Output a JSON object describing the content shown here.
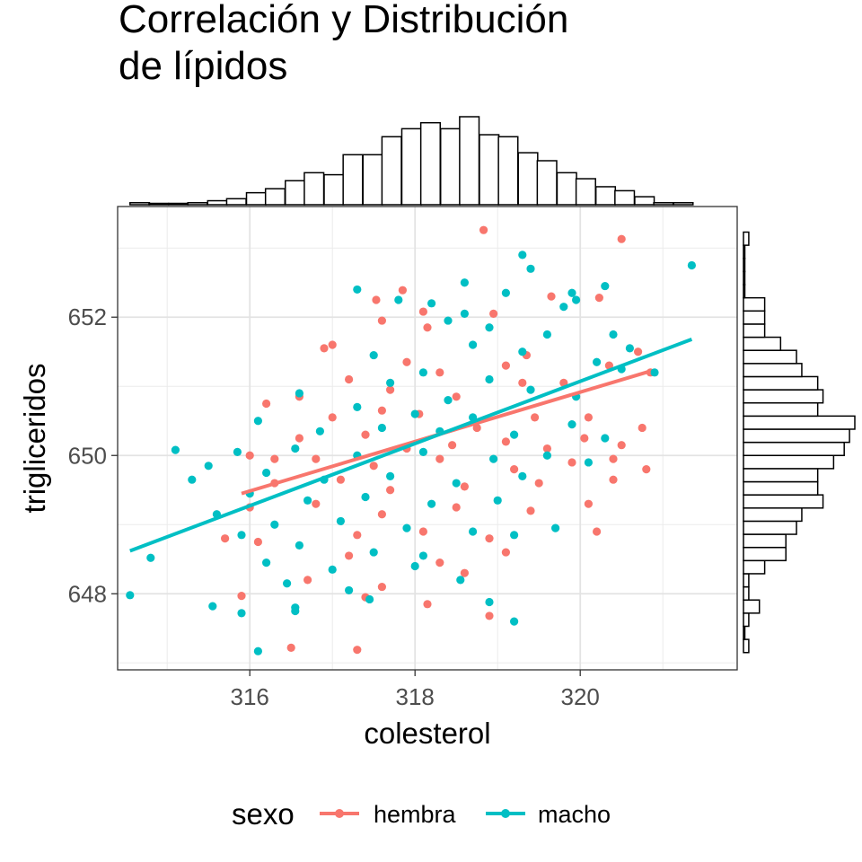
{
  "chart_data": {
    "type": "scatter",
    "title": [
      "Correlación y Distribución",
      "de lípidos"
    ],
    "xlabel": "colesterol",
    "ylabel": "trigliceridos",
    "xlim": [
      314.4,
      321.9
    ],
    "ylim": [
      646.9,
      653.6
    ],
    "xticks": [
      316,
      318,
      320
    ],
    "yticks": [
      648,
      650,
      652
    ],
    "grid": true,
    "legend": {
      "title": "sexo",
      "placement": "bottom",
      "entries": [
        {
          "label": "hembra",
          "color": "#F8766D"
        },
        {
          "label": "macho",
          "color": "#00BFC4"
        }
      ]
    },
    "series": [
      {
        "name": "hembra",
        "color": "#F8766D",
        "points": [
          [
            318.83,
            653.26
          ],
          [
            320.5,
            653.13
          ],
          [
            317.85,
            652.39
          ],
          [
            317.53,
            652.25
          ],
          [
            320.23,
            652.28
          ],
          [
            318.1,
            652.08
          ],
          [
            319.65,
            652.3
          ],
          [
            318.95,
            652.05
          ],
          [
            317.6,
            651.95
          ],
          [
            318.15,
            651.85
          ],
          [
            316.9,
            651.55
          ],
          [
            317.0,
            651.6
          ],
          [
            317.9,
            651.35
          ],
          [
            319.35,
            651.45
          ],
          [
            320.35,
            651.3
          ],
          [
            320.7,
            651.5
          ],
          [
            318.3,
            651.2
          ],
          [
            319.8,
            651.05
          ],
          [
            319.1,
            651.3
          ],
          [
            319.3,
            651.05
          ],
          [
            317.2,
            651.1
          ],
          [
            317.7,
            650.95
          ],
          [
            318.5,
            650.85
          ],
          [
            316.6,
            650.85
          ],
          [
            316.2,
            650.75
          ],
          [
            317.6,
            650.65
          ],
          [
            317.0,
            650.55
          ],
          [
            318.05,
            650.6
          ],
          [
            318.75,
            650.4
          ],
          [
            319.45,
            650.55
          ],
          [
            320.1,
            650.55
          ],
          [
            320.75,
            650.4
          ],
          [
            316.6,
            650.25
          ],
          [
            317.4,
            650.3
          ],
          [
            317.9,
            650.1
          ],
          [
            318.45,
            650.15
          ],
          [
            319.1,
            650.2
          ],
          [
            319.6,
            650.1
          ],
          [
            320.05,
            650.25
          ],
          [
            320.5,
            650.15
          ],
          [
            316.0,
            650.0
          ],
          [
            316.8,
            649.95
          ],
          [
            317.5,
            649.85
          ],
          [
            318.3,
            649.95
          ],
          [
            319.2,
            649.8
          ],
          [
            319.9,
            649.9
          ],
          [
            320.4,
            649.95
          ],
          [
            320.8,
            649.8
          ],
          [
            316.3,
            649.6
          ],
          [
            317.1,
            649.65
          ],
          [
            317.7,
            649.5
          ],
          [
            318.6,
            649.55
          ],
          [
            319.5,
            649.6
          ],
          [
            320.4,
            649.65
          ],
          [
            316.0,
            649.25
          ],
          [
            316.8,
            649.3
          ],
          [
            317.6,
            649.15
          ],
          [
            318.5,
            649.25
          ],
          [
            319.4,
            649.2
          ],
          [
            320.1,
            649.3
          ],
          [
            317.3,
            648.85
          ],
          [
            318.1,
            648.9
          ],
          [
            318.9,
            648.8
          ],
          [
            320.2,
            648.9
          ],
          [
            316.1,
            648.75
          ],
          [
            317.2,
            648.55
          ],
          [
            318.3,
            648.45
          ],
          [
            319.1,
            648.6
          ],
          [
            316.7,
            648.2
          ],
          [
            317.6,
            648.1
          ],
          [
            318.6,
            648.3
          ],
          [
            315.9,
            647.97
          ],
          [
            317.4,
            647.95
          ],
          [
            318.15,
            647.85
          ],
          [
            318.9,
            647.68
          ],
          [
            316.5,
            647.22
          ],
          [
            317.3,
            647.19
          ],
          [
            315.7,
            648.8
          ],
          [
            316.3,
            649.95
          ],
          [
            320.85,
            651.2
          ]
        ],
        "trend": [
          [
            315.9,
            649.45
          ],
          [
            320.85,
            651.22
          ]
        ]
      },
      {
        "name": "macho",
        "color": "#00BFC4",
        "points": [
          [
            321.35,
            652.75
          ],
          [
            319.3,
            652.9
          ],
          [
            319.4,
            652.7
          ],
          [
            318.6,
            652.5
          ],
          [
            317.3,
            652.4
          ],
          [
            319.9,
            652.35
          ],
          [
            320.3,
            652.45
          ],
          [
            319.1,
            652.35
          ],
          [
            317.8,
            652.25
          ],
          [
            318.2,
            652.2
          ],
          [
            319.95,
            652.25
          ],
          [
            318.6,
            652.05
          ],
          [
            319.8,
            652.15
          ],
          [
            318.4,
            651.95
          ],
          [
            318.9,
            651.85
          ],
          [
            319.6,
            651.75
          ],
          [
            320.4,
            651.75
          ],
          [
            320.6,
            651.55
          ],
          [
            318.7,
            651.6
          ],
          [
            317.5,
            651.45
          ],
          [
            319.3,
            651.5
          ],
          [
            320.2,
            651.35
          ],
          [
            320.5,
            651.25
          ],
          [
            320.9,
            651.2
          ],
          [
            318.1,
            651.2
          ],
          [
            318.9,
            651.1
          ],
          [
            317.7,
            651.05
          ],
          [
            319.4,
            650.95
          ],
          [
            316.6,
            650.9
          ],
          [
            318.4,
            650.8
          ],
          [
            319.95,
            650.85
          ],
          [
            317.3,
            650.7
          ],
          [
            318.0,
            650.6
          ],
          [
            318.7,
            650.55
          ],
          [
            316.1,
            650.5
          ],
          [
            316.85,
            650.35
          ],
          [
            317.6,
            650.4
          ],
          [
            318.3,
            650.35
          ],
          [
            319.2,
            650.3
          ],
          [
            319.9,
            650.45
          ],
          [
            320.3,
            650.25
          ],
          [
            315.1,
            650.08
          ],
          [
            315.85,
            650.05
          ],
          [
            316.55,
            650.1
          ],
          [
            317.3,
            650.0
          ],
          [
            318.1,
            650.05
          ],
          [
            318.95,
            649.95
          ],
          [
            319.6,
            650.0
          ],
          [
            320.1,
            649.9
          ],
          [
            315.5,
            649.85
          ],
          [
            316.2,
            649.75
          ],
          [
            316.9,
            649.65
          ],
          [
            317.7,
            649.7
          ],
          [
            318.5,
            649.6
          ],
          [
            319.3,
            649.7
          ],
          [
            315.3,
            649.65
          ],
          [
            316.0,
            649.45
          ],
          [
            316.7,
            649.35
          ],
          [
            317.4,
            649.4
          ],
          [
            318.2,
            649.3
          ],
          [
            319.0,
            649.35
          ],
          [
            315.6,
            649.15
          ],
          [
            316.3,
            649.0
          ],
          [
            317.1,
            649.05
          ],
          [
            317.9,
            648.95
          ],
          [
            318.7,
            648.9
          ],
          [
            319.7,
            648.95
          ],
          [
            315.9,
            648.85
          ],
          [
            316.6,
            648.7
          ],
          [
            317.5,
            648.6
          ],
          [
            318.1,
            648.55
          ],
          [
            319.2,
            648.85
          ],
          [
            314.8,
            648.52
          ],
          [
            316.2,
            648.45
          ],
          [
            317.0,
            648.35
          ],
          [
            318.0,
            648.4
          ],
          [
            316.45,
            648.15
          ],
          [
            317.2,
            648.05
          ],
          [
            318.55,
            648.2
          ],
          [
            314.55,
            647.98
          ],
          [
            315.55,
            647.82
          ],
          [
            316.55,
            647.75
          ],
          [
            317.45,
            647.92
          ],
          [
            318.9,
            647.88
          ],
          [
            315.9,
            647.72
          ],
          [
            316.1,
            647.17
          ],
          [
            319.2,
            647.6
          ],
          [
            316.55,
            647.8
          ]
        ],
        "trend": [
          [
            314.55,
            648.62
          ],
          [
            321.35,
            651.68
          ]
        ]
      }
    ],
    "marginal_x_histogram": {
      "bin_starts": [
        314.55,
        314.78,
        315.02,
        315.25,
        315.49,
        315.72,
        315.96,
        316.19,
        316.43,
        316.66,
        316.9,
        317.13,
        317.37,
        317.6,
        317.84,
        318.07,
        318.31,
        318.54,
        318.78,
        319.01,
        319.25,
        319.48,
        319.72,
        319.95,
        320.19,
        320.42,
        320.66,
        320.89,
        321.13
      ],
      "bin_width": 0.235,
      "counts": [
        1,
        0,
        0,
        1,
        2,
        3,
        6,
        8,
        12,
        16,
        15,
        25,
        25,
        34,
        38,
        41,
        38,
        44,
        35,
        34,
        26,
        22,
        16,
        13,
        9,
        7,
        4,
        1,
        1
      ]
    },
    "marginal_y_histogram": {
      "bin_starts": [
        647.15,
        647.34,
        647.53,
        647.72,
        647.91,
        648.1,
        648.29,
        648.48,
        648.67,
        648.86,
        649.05,
        649.24,
        649.43,
        649.62,
        649.81,
        650.0,
        650.19,
        650.38,
        650.57,
        650.76,
        650.95,
        651.14,
        651.33,
        651.52,
        651.71,
        651.9,
        652.09,
        652.28,
        652.47,
        652.66,
        652.85,
        653.04
      ],
      "bin_width": 0.19,
      "counts": [
        1,
        0,
        1,
        3,
        1,
        1,
        4,
        8,
        8,
        10,
        11,
        15,
        14,
        14,
        17,
        19,
        20,
        21,
        14,
        15,
        14,
        11,
        10,
        7,
        4,
        4,
        4,
        0,
        0,
        0,
        0,
        1
      ]
    }
  }
}
